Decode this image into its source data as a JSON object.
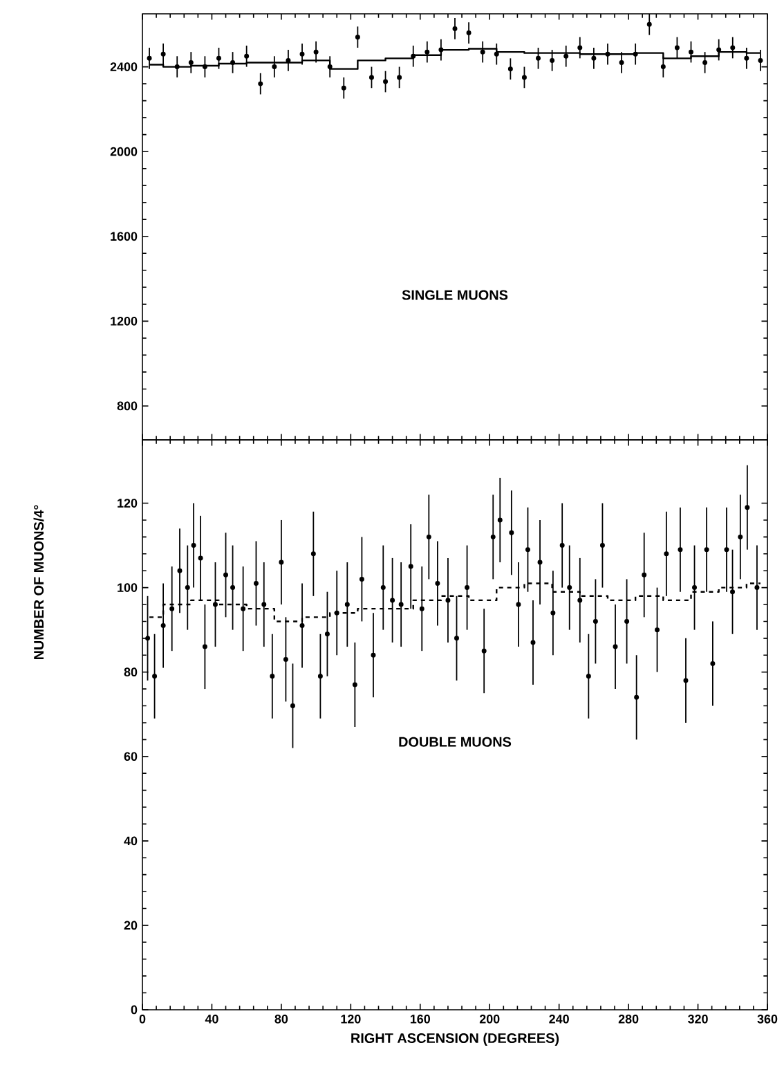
{
  "chart_data": [
    {
      "type": "scatter",
      "xlim": [
        0,
        360
      ],
      "xticks": [
        0,
        40,
        80,
        120,
        160,
        200,
        240,
        280,
        320,
        360
      ],
      "ylim": [
        640,
        2650
      ],
      "yticks": [
        800,
        1200,
        1600,
        2000,
        2400
      ],
      "tick_labels": "y",
      "annotations": [
        "SINGLE MUONS"
      ],
      "series": [
        {
          "marker": "circle",
          "color": "#000000",
          "x": [
            4,
            12,
            20,
            28,
            36,
            44,
            52,
            60,
            68,
            76,
            84,
            92,
            100,
            108,
            116,
            124,
            132,
            140,
            148,
            156,
            164,
            172,
            180,
            188,
            196,
            204,
            212,
            220,
            228,
            236,
            244,
            252,
            260,
            268,
            276,
            284,
            292,
            300,
            308,
            316,
            324,
            332,
            340,
            348,
            356
          ],
          "values": [
            2440,
            2460,
            2400,
            2420,
            2400,
            2440,
            2420,
            2450,
            2320,
            2400,
            2430,
            2460,
            2470,
            2400,
            2300,
            2540,
            2350,
            2330,
            2350,
            2450,
            2470,
            2480,
            2580,
            2560,
            2470,
            2460,
            2390,
            2350,
            2440,
            2430,
            2450,
            2490,
            2440,
            2460,
            2420,
            2460,
            2600,
            2400,
            2490,
            2470,
            2420,
            2480,
            2490,
            2440,
            2430
          ],
          "errors": [
            50,
            50,
            50,
            50,
            50,
            50,
            50,
            50,
            50,
            50,
            50,
            50,
            50,
            50,
            50,
            50,
            50,
            50,
            50,
            50,
            50,
            50,
            50,
            50,
            50,
            50,
            50,
            50,
            50,
            50,
            50,
            50,
            50,
            50,
            50,
            50,
            50,
            50,
            50,
            50,
            50,
            50,
            50,
            50,
            50
          ]
        },
        {
          "type": "step",
          "color": "#000000",
          "line_style": "solid",
          "x": [
            4,
            20,
            36,
            52,
            68,
            84,
            100,
            116,
            132,
            148,
            164,
            180,
            196,
            212,
            228,
            244,
            260,
            276,
            292,
            308,
            324,
            340,
            356
          ],
          "values": [
            2410,
            2400,
            2405,
            2415,
            2420,
            2420,
            2430,
            2390,
            2430,
            2440,
            2455,
            2480,
            2485,
            2470,
            2465,
            2465,
            2460,
            2460,
            2465,
            2440,
            2450,
            2470,
            2465
          ]
        }
      ]
    },
    {
      "type": "scatter",
      "xlabel": "RIGHT ASCENSION (DEGREES)",
      "ylabel": "NUMBER OF MUONS/4°",
      "xlim": [
        0,
        360
      ],
      "xticks": [
        0,
        40,
        80,
        120,
        160,
        200,
        240,
        280,
        320,
        360
      ],
      "ylim": [
        0,
        135
      ],
      "yticks": [
        0,
        20,
        40,
        60,
        80,
        100,
        120
      ],
      "annotations": [
        "DOUBLE MUONS"
      ],
      "series": [
        {
          "marker": "circle",
          "color": "#000000",
          "x": [
            3,
            7,
            12,
            17,
            21.5,
            26,
            29.5,
            33.5,
            36,
            42,
            48,
            52,
            58,
            65.5,
            70,
            74.8,
            80,
            82.6,
            86.6,
            92,
            98.5,
            102.5,
            106.5,
            112,
            118,
            122.4,
            126.4,
            133,
            138.7,
            144,
            149,
            154.6,
            161,
            165,
            170,
            176,
            181,
            187,
            196.8,
            202,
            206,
            212.6,
            216.6,
            222,
            225,
            229,
            236.5,
            241.8,
            246,
            252,
            257,
            261,
            265,
            272.4,
            279,
            284.6,
            289,
            296.5,
            301.8,
            309.8,
            313,
            318,
            325,
            328.5,
            336.5,
            339.9,
            344.4,
            348.4,
            354
          ],
          "values": [
            88,
            79,
            91,
            95,
            104,
            100,
            110,
            107,
            86,
            96,
            103,
            100,
            95,
            101,
            96,
            79,
            106,
            83,
            72,
            91,
            108,
            79,
            89,
            94,
            96,
            77,
            102,
            84,
            100,
            97,
            96,
            105,
            95,
            112,
            101,
            97,
            88,
            100,
            85,
            112,
            116,
            113,
            96,
            109,
            87,
            106,
            94,
            110,
            100,
            97,
            79,
            92,
            110,
            86,
            92,
            74,
            103,
            90,
            108,
            109,
            78,
            100,
            109,
            82,
            109,
            99,
            112,
            119,
            100
          ],
          "errors": [
            10,
            10,
            10,
            10,
            10,
            10,
            10,
            10,
            10,
            10,
            10,
            10,
            10,
            10,
            10,
            10,
            10,
            10,
            10,
            10,
            10,
            10,
            10,
            10,
            10,
            10,
            10,
            10,
            10,
            10,
            10,
            10,
            10,
            10,
            10,
            10,
            10,
            10,
            10,
            10,
            10,
            10,
            10,
            10,
            10,
            10,
            10,
            10,
            10,
            10,
            10,
            10,
            10,
            10,
            10,
            10,
            10,
            10,
            10,
            10,
            10,
            10,
            10,
            10,
            10,
            10,
            10,
            10,
            10
          ]
        },
        {
          "type": "step",
          "color": "#000000",
          "line_style": "dashed",
          "x": [
            4,
            20,
            36,
            52,
            68,
            84,
            100,
            116,
            132,
            148,
            164,
            180,
            196,
            212,
            228,
            244,
            260,
            276,
            292,
            308,
            324,
            340,
            356
          ],
          "values": [
            93,
            96,
            97,
            96,
            95,
            92,
            93,
            94,
            95,
            95,
            97,
            98,
            97,
            100,
            101,
            99,
            98,
            97,
            98,
            97,
            99,
            100,
            101
          ]
        }
      ]
    }
  ]
}
